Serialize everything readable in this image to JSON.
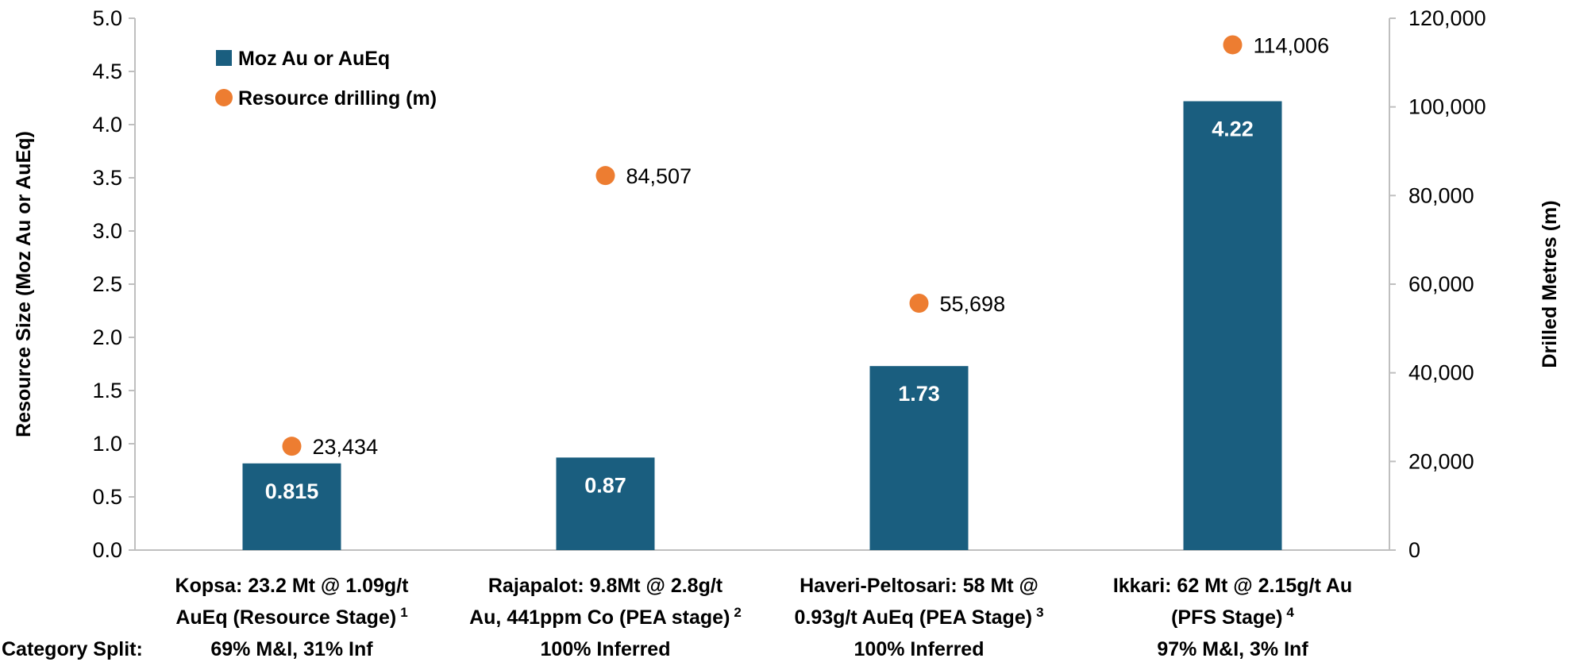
{
  "chart_data": {
    "type": "bar",
    "categories": [
      {
        "line1": "Kopsa: 23.2 Mt @ 1.09g/t",
        "line2": "AuEq (Resource Stage)",
        "footnote": "1",
        "split": "69% M&I, 31% Inf"
      },
      {
        "line1": "Rajapalot: 9.8Mt @ 2.8g/t",
        "line2": "Au, 441ppm Co (PEA stage)",
        "footnote": "2",
        "split": "100% Inferred"
      },
      {
        "line1": "Haveri-Peltosari: 58 Mt @",
        "line2": "0.93g/t AuEq (PEA Stage)",
        "footnote": "3",
        "split": "100% Inferred"
      },
      {
        "line1": "Ikkari: 62 Mt @ 2.15g/t Au",
        "line2": "(PFS Stage)",
        "footnote": "4",
        "split": "97% M&I, 3% Inf"
      }
    ],
    "category_split_label": "Category Split:",
    "series": [
      {
        "name": "Moz Au or AuEq",
        "type": "bar",
        "axis": "left",
        "color": "#1a5e7f",
        "values": [
          0.815,
          0.87,
          1.73,
          4.22
        ],
        "labels": [
          "0.815",
          "0.87",
          "1.73",
          "4.22"
        ]
      },
      {
        "name": "Resource drilling (m)",
        "type": "scatter",
        "axis": "right",
        "color": "#ed7d31",
        "values": [
          23434,
          84507,
          55698,
          114006
        ],
        "labels": [
          "23,434",
          "84,507",
          "55,698",
          "114,006"
        ]
      }
    ],
    "ylabel": "Resource Size (Moz Au or AuEq)",
    "ylim": [
      0,
      5
    ],
    "yticks": [
      "0.0",
      "0.5",
      "1.0",
      "1.5",
      "2.0",
      "2.5",
      "3.0",
      "3.5",
      "4.0",
      "4.5",
      "5.0"
    ],
    "y2label": "Drilled Metres (m)",
    "y2lim": [
      0,
      120000
    ],
    "y2ticks": [
      "0",
      "20,000",
      "40,000",
      "60,000",
      "80,000",
      "100,000",
      "120,000"
    ],
    "legend_position": "top-left",
    "grid": false
  }
}
